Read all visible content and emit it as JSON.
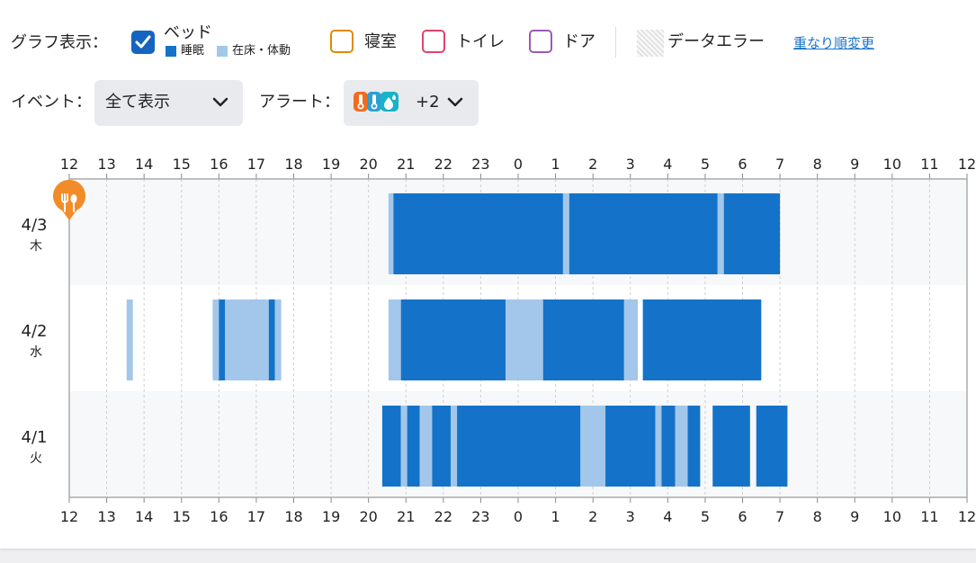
{
  "graph_display": {
    "label": "グラフ表示：",
    "bed": {
      "label": "ベッド",
      "checked": true,
      "legend": [
        {
          "label": "睡眠",
          "color": "#1473c8"
        },
        {
          "label": "在床・体動",
          "color": "#a3c7ea"
        }
      ]
    },
    "bedroom": {
      "label": "寝室",
      "checked": false,
      "color": "#e08a00"
    },
    "toilet": {
      "label": "トイレ",
      "checked": false,
      "color": "#e0436b"
    },
    "door": {
      "label": "ドア",
      "checked": false,
      "color": "#9b59b6"
    },
    "data_error": {
      "label": "データエラー"
    },
    "reorder_link": "重なり順変更"
  },
  "event_filter": {
    "label": "イベント：",
    "value": "全て表示"
  },
  "alert_filter": {
    "label": "アラート：",
    "icons": [
      "thermometer-icon",
      "thermometer-icon",
      "droplet-icon"
    ],
    "more": "+2"
  },
  "colors": {
    "sleep": "#1473c8",
    "in_bed": "#a3c7ea",
    "row_alt": "#f7f8fa",
    "grid": "#cfcfcf",
    "axis": "#888888",
    "meal": "#f28c28"
  },
  "chart_data": {
    "type": "timeline",
    "x_start": "12:00",
    "x_end": "12:00 (next day)",
    "x_ticks": [
      "12",
      "13",
      "14",
      "15",
      "16",
      "17",
      "18",
      "19",
      "20",
      "21",
      "22",
      "23",
      "0",
      "1",
      "2",
      "3",
      "4",
      "5",
      "6",
      "7",
      "8",
      "9",
      "10",
      "11",
      "12"
    ],
    "rows": [
      {
        "date": "4/3",
        "weekday": "木",
        "segments": [
          {
            "start": "20:32",
            "end": "20:40",
            "state": "在床・体動"
          },
          {
            "start": "20:40",
            "end": "01:12",
            "state": "睡眠"
          },
          {
            "start": "01:12",
            "end": "01:22",
            "state": "在床・体動"
          },
          {
            "start": "01:22",
            "end": "05:20",
            "state": "睡眠"
          },
          {
            "start": "05:20",
            "end": "05:30",
            "state": "在床・体動"
          },
          {
            "start": "05:30",
            "end": "07:00",
            "state": "睡眠"
          }
        ],
        "events": [
          {
            "time": "12:00",
            "type": "meal",
            "icon": "fork-spoon-icon"
          }
        ]
      },
      {
        "date": "4/2",
        "weekday": "水",
        "segments": [
          {
            "start": "13:32",
            "end": "13:42",
            "state": "在床・体動"
          },
          {
            "start": "15:50",
            "end": "16:00",
            "state": "在床・体動"
          },
          {
            "start": "16:00",
            "end": "16:10",
            "state": "睡眠"
          },
          {
            "start": "16:10",
            "end": "17:20",
            "state": "在床・体動"
          },
          {
            "start": "17:20",
            "end": "17:30",
            "state": "睡眠"
          },
          {
            "start": "17:30",
            "end": "17:40",
            "state": "在床・体動"
          },
          {
            "start": "20:32",
            "end": "20:52",
            "state": "在床・体動"
          },
          {
            "start": "20:52",
            "end": "23:40",
            "state": "睡眠"
          },
          {
            "start": "23:40",
            "end": "00:40",
            "state": "在床・体動"
          },
          {
            "start": "00:40",
            "end": "02:50",
            "state": "睡眠"
          },
          {
            "start": "02:50",
            "end": "03:12",
            "state": "在床・体動"
          },
          {
            "start": "03:20",
            "end": "06:30",
            "state": "睡眠"
          }
        ],
        "events": []
      },
      {
        "date": "4/1",
        "weekday": "火",
        "segments": [
          {
            "start": "20:22",
            "end": "20:52",
            "state": "睡眠"
          },
          {
            "start": "20:52",
            "end": "21:02",
            "state": "在床・体動"
          },
          {
            "start": "21:02",
            "end": "21:22",
            "state": "睡眠"
          },
          {
            "start": "21:22",
            "end": "21:42",
            "state": "在床・体動"
          },
          {
            "start": "21:42",
            "end": "22:12",
            "state": "睡眠"
          },
          {
            "start": "22:12",
            "end": "22:22",
            "state": "在床・体動"
          },
          {
            "start": "22:22",
            "end": "01:40",
            "state": "睡眠"
          },
          {
            "start": "01:40",
            "end": "02:20",
            "state": "在床・体動"
          },
          {
            "start": "02:20",
            "end": "03:40",
            "state": "睡眠"
          },
          {
            "start": "03:40",
            "end": "03:50",
            "state": "在床・体動"
          },
          {
            "start": "03:50",
            "end": "04:12",
            "state": "睡眠"
          },
          {
            "start": "04:12",
            "end": "04:32",
            "state": "在床・体動"
          },
          {
            "start": "04:32",
            "end": "04:52",
            "state": "睡眠"
          },
          {
            "start": "05:12",
            "end": "06:12",
            "state": "睡眠"
          },
          {
            "start": "06:22",
            "end": "07:12",
            "state": "睡眠"
          }
        ],
        "events": []
      }
    ]
  }
}
